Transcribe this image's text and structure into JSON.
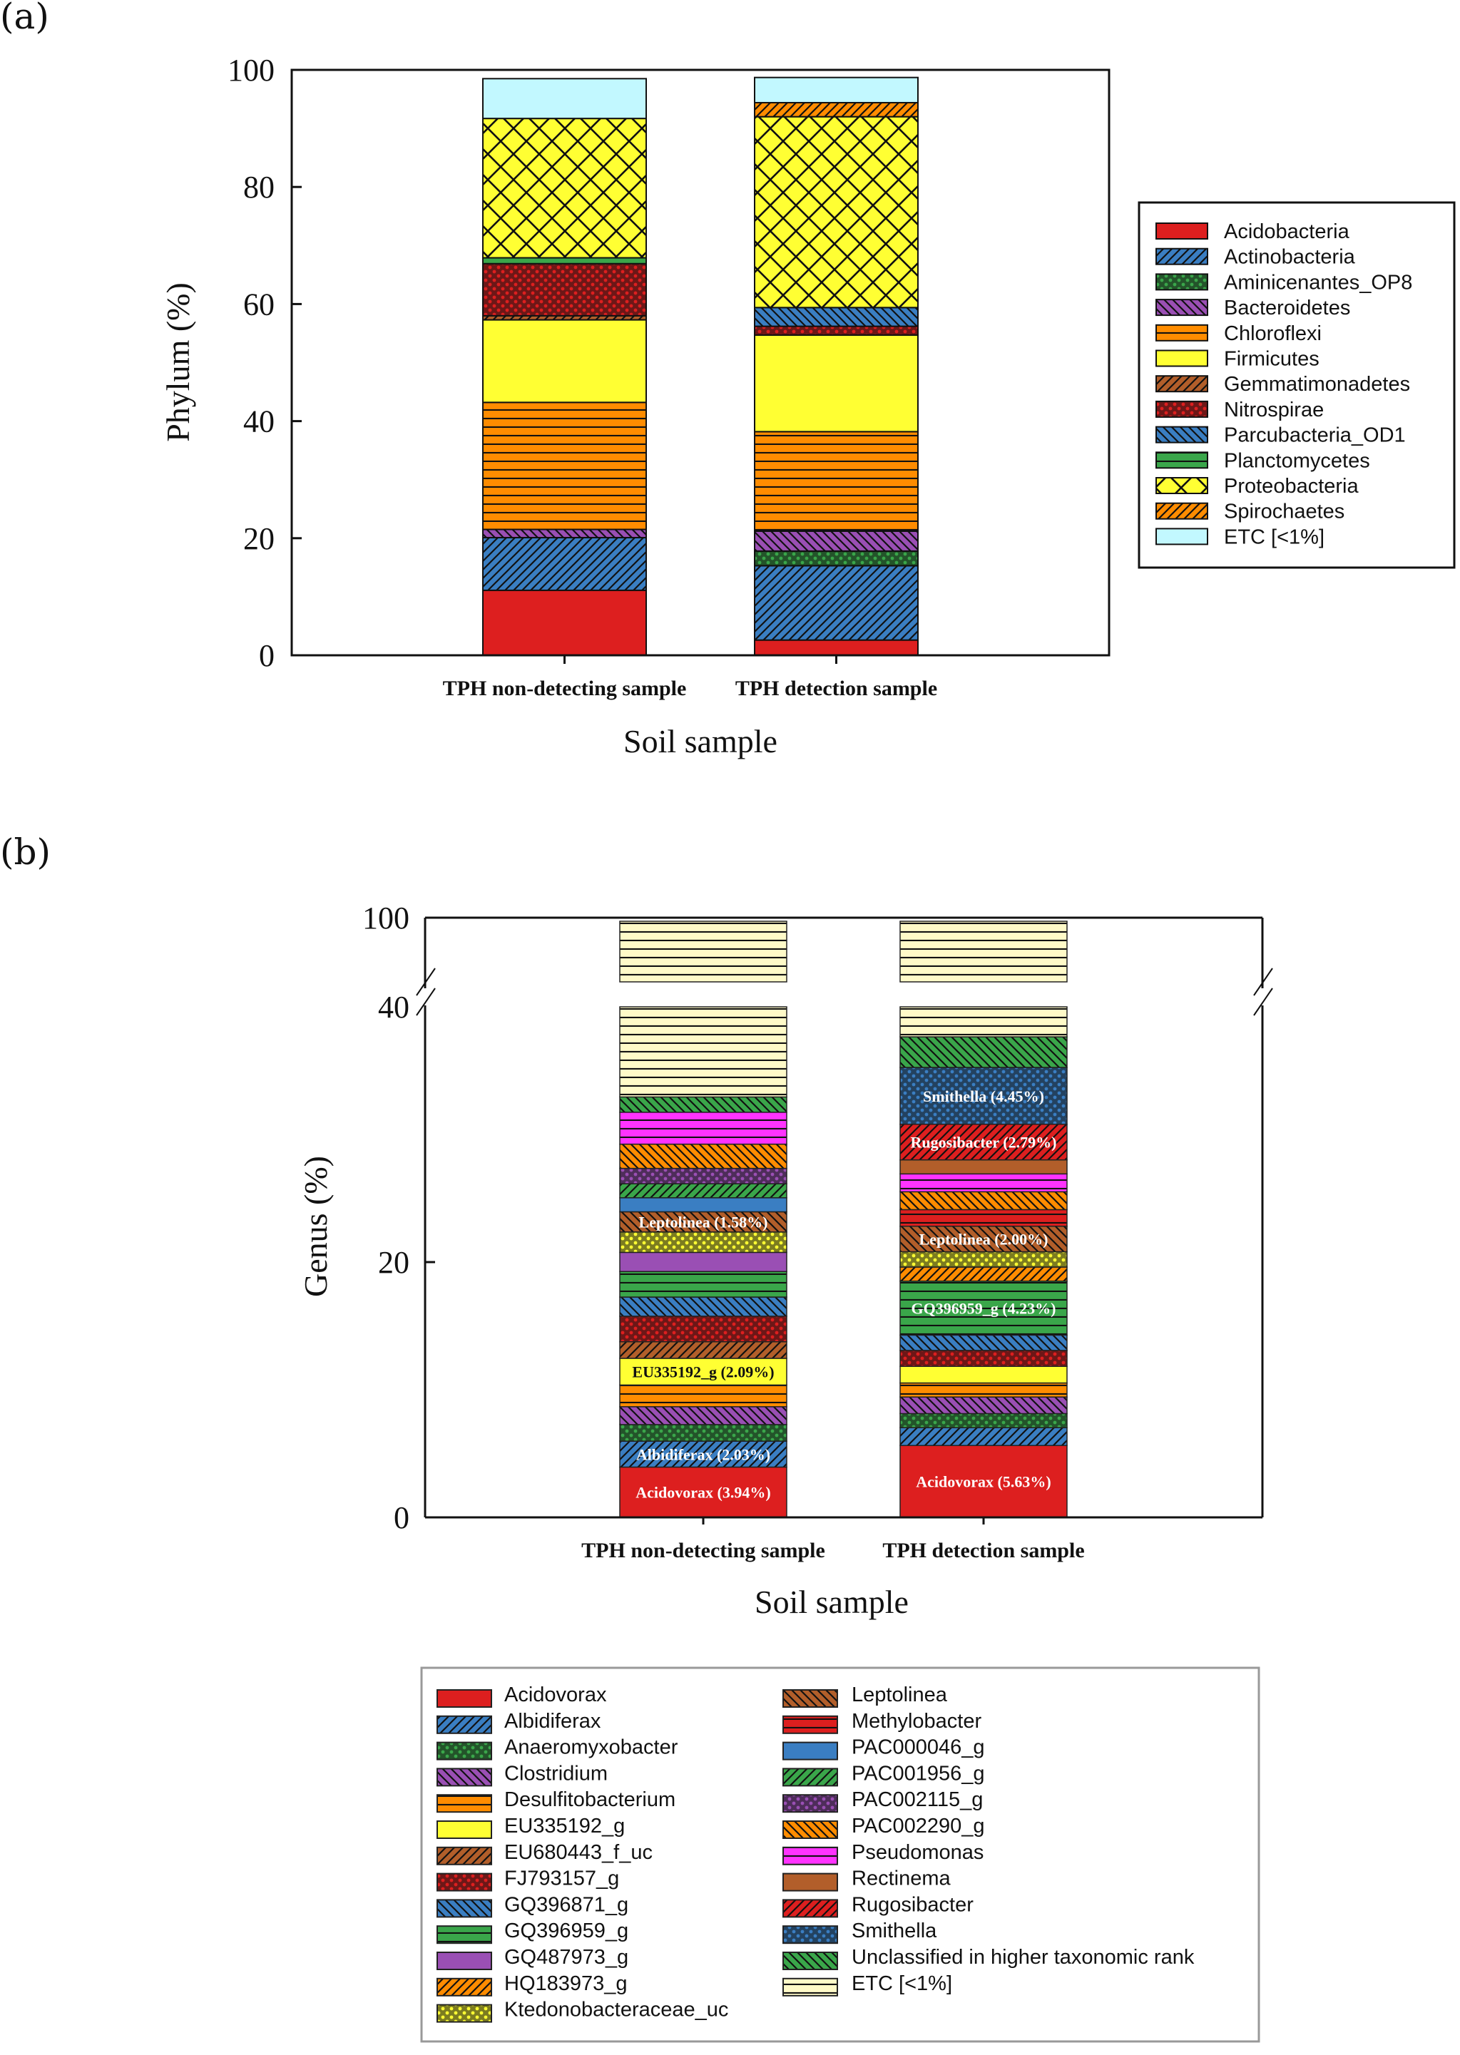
{
  "colors": {
    "red": "#dd1f1f",
    "blue": "#3a7ec2",
    "green": "#3aa64a",
    "purple": "#9a4fb4",
    "orange": "#ff8c00",
    "yellow": "#ffff33",
    "brown": "#b25e2a",
    "cyan": "#c2f8ff",
    "magenta": "#ff33ff",
    "cream": "#fffac8"
  },
  "chart_data": [
    {
      "id": "a",
      "panel_label": "(a)",
      "type": "bar",
      "stacked": true,
      "title": "",
      "xlabel": "Soil sample",
      "ylabel": "Phylum (%)",
      "ylim": [
        0,
        100
      ],
      "yticks": [
        "0",
        "20",
        "40",
        "60",
        "80",
        "100"
      ],
      "ytick_values": [
        0,
        20,
        40,
        60,
        80,
        100
      ],
      "categories": [
        "TPH non-detecting sample",
        "TPH detection sample"
      ],
      "legend_position": "right",
      "series": [
        {
          "name": "Acidobacteria",
          "color": "red",
          "pattern": "solid",
          "values": [
            11.1,
            2.6
          ]
        },
        {
          "name": "Actinobacteria",
          "color": "blue",
          "pattern": "diag-right",
          "values": [
            9.0,
            12.7
          ]
        },
        {
          "name": "Aminicenantes_OP8",
          "color": "green",
          "pattern": "dots",
          "values": [
            0,
            2.5
          ]
        },
        {
          "name": "Bacteroidetes",
          "color": "purple",
          "pattern": "diag-left",
          "values": [
            1.4,
            3.4
          ]
        },
        {
          "name": "Chloroflexi",
          "color": "orange",
          "pattern": "hlines",
          "values": [
            21.7,
            17.0
          ]
        },
        {
          "name": "Firmicutes",
          "color": "yellow",
          "pattern": "solid",
          "values": [
            14.1,
            16.5
          ]
        },
        {
          "name": "Gemmatimonadetes",
          "color": "brown",
          "pattern": "diag-right",
          "values": [
            0.7,
            0
          ]
        },
        {
          "name": "Nitrospirae",
          "color": "red",
          "pattern": "dots",
          "values": [
            8.9,
            1.5
          ]
        },
        {
          "name": "Parcubacteria_OD1",
          "color": "blue",
          "pattern": "diag-left",
          "values": [
            0,
            3.2
          ]
        },
        {
          "name": "Planctomycetes",
          "color": "green",
          "pattern": "hlines",
          "values": [
            1.0,
            0
          ]
        },
        {
          "name": "Proteobacteria",
          "color": "yellow",
          "pattern": "crosshatch",
          "values": [
            23.8,
            32.6
          ]
        },
        {
          "name": "Spirochaetes",
          "color": "orange",
          "pattern": "diag-right",
          "values": [
            0,
            2.4
          ]
        },
        {
          "name": "ETC [<1%]",
          "color": "cyan",
          "pattern": "solid",
          "values": [
            6.8,
            4.3
          ]
        }
      ]
    },
    {
      "id": "b",
      "panel_label": "(b)",
      "type": "bar",
      "stacked": true,
      "title": "",
      "xlabel": "Soil sample",
      "ylabel": "Genus (%)",
      "ylim": [
        0,
        100
      ],
      "axis_break": [
        40,
        100
      ],
      "yticks": [
        "0",
        "20",
        "40",
        "100"
      ],
      "ytick_values": [
        0,
        20,
        40,
        100
      ],
      "categories": [
        "TPH non-detecting sample",
        "TPH detection sample"
      ],
      "legend_position": "bottom",
      "series": [
        {
          "name": "Acidovorax",
          "color": "red",
          "pattern": "solid",
          "values": [
            3.94,
            5.63
          ],
          "labels": [
            "Acidovorax (3.94%)",
            "Acidovorax (5.63%)"
          ]
        },
        {
          "name": "Albidiferax",
          "color": "blue",
          "pattern": "diag-right",
          "values": [
            2.03,
            1.4
          ],
          "labels": [
            "Albidiferax (2.03%)",
            ""
          ]
        },
        {
          "name": "Anaeromyxobacter",
          "color": "green",
          "pattern": "dots",
          "values": [
            1.3,
            1.1
          ]
        },
        {
          "name": "Clostridium",
          "color": "purple",
          "pattern": "diag-left",
          "values": [
            1.4,
            1.3
          ]
        },
        {
          "name": "Desulfitobacterium",
          "color": "orange",
          "pattern": "hlines",
          "values": [
            1.7,
            1.1
          ]
        },
        {
          "name": "EU335192_g",
          "color": "yellow",
          "pattern": "solid",
          "values": [
            2.09,
            1.3
          ],
          "labels": [
            "EU335192_g (2.09%)",
            ""
          ]
        },
        {
          "name": "EU680443_f_uc",
          "color": "brown",
          "pattern": "diag-right",
          "values": [
            1.3,
            0
          ]
        },
        {
          "name": "FJ793157_g",
          "color": "red",
          "pattern": "dots",
          "values": [
            2.0,
            1.25
          ]
        },
        {
          "name": "GQ396871_g",
          "color": "blue",
          "pattern": "diag-left",
          "values": [
            1.5,
            1.2
          ]
        },
        {
          "name": "GQ396959_g",
          "color": "green",
          "pattern": "hlines",
          "values": [
            2.0,
            4.23
          ],
          "labels": [
            "",
            "GQ396959_g (4.23%)"
          ]
        },
        {
          "name": "GQ487973_g",
          "color": "purple",
          "pattern": "solid",
          "values": [
            1.5,
            0
          ]
        },
        {
          "name": "HQ183973_g",
          "color": "orange",
          "pattern": "diag-right",
          "values": [
            0,
            1.1
          ]
        },
        {
          "name": "Ktedonobacteraceae_uc",
          "color": "yellow",
          "pattern": "dots",
          "values": [
            1.6,
            1.2
          ]
        },
        {
          "name": "Leptolinea",
          "color": "brown",
          "pattern": "diag-left",
          "values": [
            1.58,
            2.0
          ],
          "labels": [
            "Leptolinea (1.58%)",
            "Leptolinea (2.00%)"
          ]
        },
        {
          "name": "Methylobacter",
          "color": "red",
          "pattern": "hlines",
          "values": [
            0,
            1.3
          ]
        },
        {
          "name": "PAC000046_g",
          "color": "blue",
          "pattern": "solid",
          "values": [
            1.1,
            0
          ]
        },
        {
          "name": "PAC001956_g",
          "color": "green",
          "pattern": "diag-right",
          "values": [
            1.1,
            0
          ]
        },
        {
          "name": "PAC002115_g",
          "color": "purple",
          "pattern": "dots",
          "values": [
            1.2,
            0
          ]
        },
        {
          "name": "PAC002290_g",
          "color": "orange",
          "pattern": "diag-left",
          "values": [
            1.9,
            1.4
          ]
        },
        {
          "name": "Pseudomonas",
          "color": "magenta",
          "pattern": "hlines",
          "values": [
            2.5,
            1.4
          ]
        },
        {
          "name": "Rectinema",
          "color": "brown",
          "pattern": "solid",
          "values": [
            0,
            1.1
          ]
        },
        {
          "name": "Rugosibacter",
          "color": "red",
          "pattern": "diag-right",
          "values": [
            0,
            2.79
          ],
          "labels": [
            "",
            "Rugosibacter (2.79%)"
          ]
        },
        {
          "name": "Smithella",
          "color": "blue",
          "pattern": "dots",
          "values": [
            0,
            4.45
          ],
          "labels": [
            "",
            "Smithella (4.45%)"
          ]
        },
        {
          "name": "Unclassified in higher taxonomic rank",
          "color": "green",
          "pattern": "diag-left",
          "values": [
            1.2,
            2.4
          ]
        },
        {
          "name": "ETC [<1%]",
          "color": "cream",
          "pattern": "hlines",
          "values": [
            66.07,
            62.51
          ]
        }
      ]
    }
  ]
}
